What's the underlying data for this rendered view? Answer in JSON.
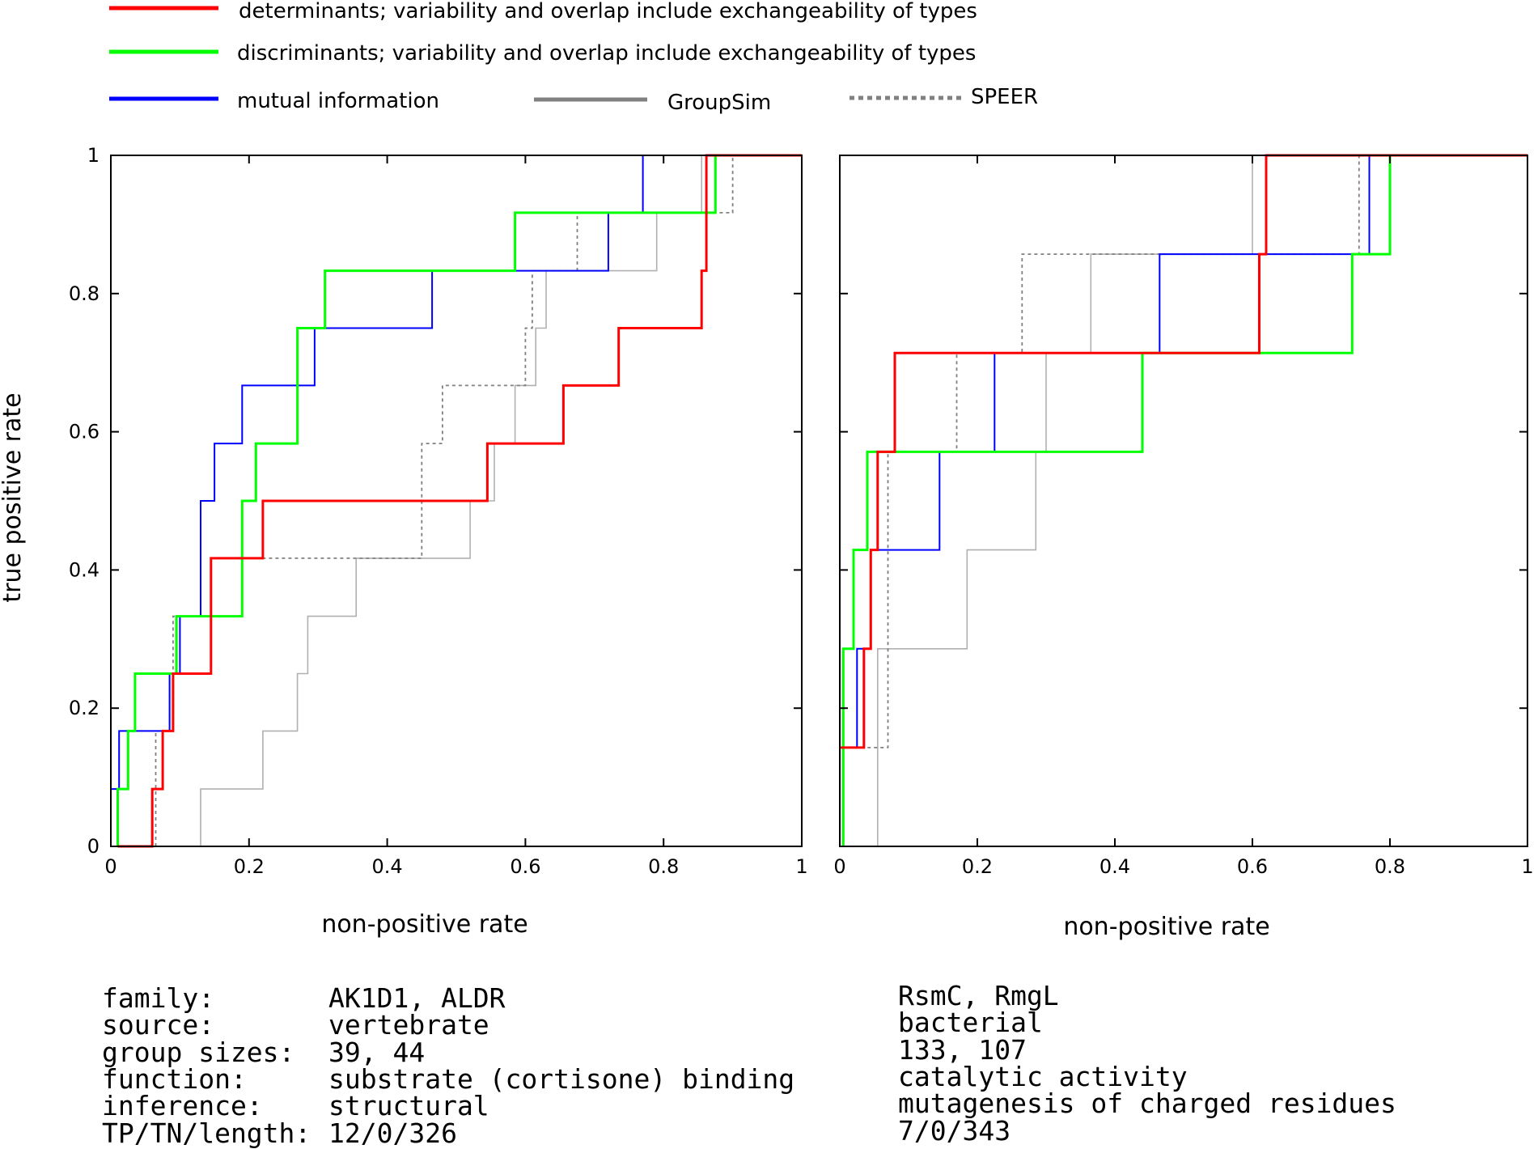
{
  "legend": [
    {
      "label": "determinants; variability and overlap include exchangeability of types",
      "color": "#ff0000",
      "dash": "solid"
    },
    {
      "label": "discriminants; variability and overlap include exchangeability of types",
      "color": "#00ff00",
      "dash": "solid"
    },
    {
      "label": "mutual information",
      "color": "#0000ff",
      "dash": "solid"
    },
    {
      "label": "GroupSim",
      "color": "#808080",
      "dash": "solid"
    },
    {
      "label": "SPEER",
      "color": "#808080",
      "dash": "dotted"
    }
  ],
  "chart_data": [
    {
      "type": "line",
      "ylabel": "true positive rate",
      "xlabel": "non-positive rate",
      "xlim": [
        0,
        1
      ],
      "ylim": [
        0,
        1
      ],
      "x_ticks": [
        "0",
        "0.2",
        "0.4",
        "0.6",
        "0.8",
        "1"
      ],
      "y_ticks": [
        "0",
        "0.2",
        "0.4",
        "0.6",
        "0.8",
        "1"
      ],
      "series": [
        {
          "name": "GroupSim",
          "color": "#b0b0b0",
          "width": 1.6,
          "dash": "",
          "points": [
            [
              0.13,
              0
            ],
            [
              0.13,
              0.083
            ],
            [
              0.22,
              0.083
            ],
            [
              0.22,
              0.167
            ],
            [
              0.27,
              0.167
            ],
            [
              0.27,
              0.25
            ],
            [
              0.285,
              0.25
            ],
            [
              0.285,
              0.333
            ],
            [
              0.355,
              0.333
            ],
            [
              0.355,
              0.417
            ],
            [
              0.52,
              0.417
            ],
            [
              0.52,
              0.5
            ],
            [
              0.555,
              0.5
            ],
            [
              0.555,
              0.583
            ],
            [
              0.585,
              0.583
            ],
            [
              0.585,
              0.667
            ],
            [
              0.615,
              0.667
            ],
            [
              0.615,
              0.75
            ],
            [
              0.63,
              0.75
            ],
            [
              0.63,
              0.833
            ],
            [
              0.79,
              0.833
            ],
            [
              0.79,
              0.917
            ],
            [
              0.855,
              0.917
            ],
            [
              0.855,
              1
            ],
            [
              1,
              1
            ]
          ]
        },
        {
          "name": "SPEER",
          "color": "#808080",
          "width": 1.8,
          "dash": "4,4",
          "points": [
            [
              0.065,
              0
            ],
            [
              0.065,
              0.167
            ],
            [
              0.085,
              0.167
            ],
            [
              0.085,
              0.25
            ],
            [
              0.09,
              0.25
            ],
            [
              0.09,
              0.333
            ],
            [
              0.19,
              0.333
            ],
            [
              0.19,
              0.417
            ],
            [
              0.45,
              0.417
            ],
            [
              0.45,
              0.583
            ],
            [
              0.48,
              0.583
            ],
            [
              0.48,
              0.667
            ],
            [
              0.6,
              0.667
            ],
            [
              0.6,
              0.75
            ],
            [
              0.61,
              0.75
            ],
            [
              0.61,
              0.833
            ],
            [
              0.675,
              0.833
            ],
            [
              0.675,
              0.917
            ],
            [
              0.9,
              0.917
            ],
            [
              0.9,
              1
            ],
            [
              1,
              1
            ]
          ]
        },
        {
          "name": "mutual information",
          "color": "#0000ff",
          "width": 2,
          "dash": "",
          "points": [
            [
              0,
              0
            ],
            [
              0,
              0.083
            ],
            [
              0.012,
              0.083
            ],
            [
              0.012,
              0.167
            ],
            [
              0.085,
              0.167
            ],
            [
              0.085,
              0.25
            ],
            [
              0.1,
              0.25
            ],
            [
              0.1,
              0.333
            ],
            [
              0.13,
              0.333
            ],
            [
              0.13,
              0.5
            ],
            [
              0.15,
              0.5
            ],
            [
              0.15,
              0.583
            ],
            [
              0.19,
              0.583
            ],
            [
              0.19,
              0.667
            ],
            [
              0.295,
              0.667
            ],
            [
              0.295,
              0.75
            ],
            [
              0.465,
              0.75
            ],
            [
              0.465,
              0.833
            ],
            [
              0.72,
              0.833
            ],
            [
              0.72,
              0.917
            ],
            [
              0.77,
              0.917
            ],
            [
              0.77,
              1
            ],
            [
              1,
              1
            ]
          ]
        },
        {
          "name": "discriminants; variability and overlap include exchangeability of types",
          "color": "#00ff00",
          "width": 3,
          "dash": "",
          "points": [
            [
              0.01,
              0
            ],
            [
              0.01,
              0.083
            ],
            [
              0.025,
              0.083
            ],
            [
              0.025,
              0.167
            ],
            [
              0.035,
              0.167
            ],
            [
              0.035,
              0.25
            ],
            [
              0.095,
              0.25
            ],
            [
              0.095,
              0.333
            ],
            [
              0.19,
              0.333
            ],
            [
              0.19,
              0.5
            ],
            [
              0.21,
              0.5
            ],
            [
              0.21,
              0.583
            ],
            [
              0.27,
              0.583
            ],
            [
              0.27,
              0.75
            ],
            [
              0.31,
              0.75
            ],
            [
              0.31,
              0.833
            ],
            [
              0.585,
              0.833
            ],
            [
              0.585,
              0.917
            ],
            [
              0.875,
              0.917
            ],
            [
              0.875,
              1
            ],
            [
              1,
              1
            ]
          ]
        },
        {
          "name": "determinants; variability and overlap include exchangeability of types",
          "color": "#ff0000",
          "width": 3,
          "dash": "",
          "points": [
            [
              0.01,
              0
            ],
            [
              0.06,
              0
            ],
            [
              0.06,
              0.083
            ],
            [
              0.075,
              0.083
            ],
            [
              0.075,
              0.167
            ],
            [
              0.09,
              0.167
            ],
            [
              0.09,
              0.25
            ],
            [
              0.145,
              0.25
            ],
            [
              0.145,
              0.417
            ],
            [
              0.22,
              0.417
            ],
            [
              0.22,
              0.5
            ],
            [
              0.545,
              0.5
            ],
            [
              0.545,
              0.583
            ],
            [
              0.655,
              0.583
            ],
            [
              0.655,
              0.667
            ],
            [
              0.735,
              0.667
            ],
            [
              0.735,
              0.75
            ],
            [
              0.855,
              0.75
            ],
            [
              0.855,
              0.833
            ],
            [
              0.862,
              0.833
            ],
            [
              0.862,
              1
            ],
            [
              1,
              1
            ]
          ]
        }
      ]
    },
    {
      "type": "line",
      "xlabel": "non-positive rate",
      "xlim": [
        0,
        1
      ],
      "ylim": [
        0,
        1
      ],
      "x_ticks": [
        "0",
        "0.2",
        "0.4",
        "0.6",
        "0.8",
        "1"
      ],
      "y_ticks": [
        "0",
        "0.2",
        "0.4",
        "0.6",
        "0.8",
        "1"
      ],
      "series": [
        {
          "name": "GroupSim",
          "color": "#b0b0b0",
          "width": 1.6,
          "dash": "",
          "points": [
            [
              0.055,
              0
            ],
            [
              0.055,
              0.286
            ],
            [
              0.185,
              0.286
            ],
            [
              0.185,
              0.429
            ],
            [
              0.285,
              0.429
            ],
            [
              0.285,
              0.571
            ],
            [
              0.3,
              0.571
            ],
            [
              0.3,
              0.714
            ],
            [
              0.365,
              0.714
            ],
            [
              0.365,
              0.857
            ],
            [
              0.6,
              0.857
            ],
            [
              0.6,
              1
            ],
            [
              1,
              1
            ]
          ]
        },
        {
          "name": "SPEER",
          "color": "#808080",
          "width": 1.8,
          "dash": "4,4",
          "points": [
            [
              0.005,
              0
            ],
            [
              0.005,
              0.143
            ],
            [
              0.07,
              0.143
            ],
            [
              0.07,
              0.571
            ],
            [
              0.17,
              0.571
            ],
            [
              0.17,
              0.714
            ],
            [
              0.265,
              0.714
            ],
            [
              0.265,
              0.857
            ],
            [
              0.755,
              0.857
            ],
            [
              0.755,
              1
            ],
            [
              1,
              1
            ]
          ]
        },
        {
          "name": "mutual information",
          "color": "#0000ff",
          "width": 2,
          "dash": "",
          "points": [
            [
              0.005,
              0
            ],
            [
              0.005,
              0.143
            ],
            [
              0.025,
              0.143
            ],
            [
              0.025,
              0.286
            ],
            [
              0.045,
              0.286
            ],
            [
              0.045,
              0.429
            ],
            [
              0.145,
              0.429
            ],
            [
              0.145,
              0.571
            ],
            [
              0.225,
              0.571
            ],
            [
              0.225,
              0.714
            ],
            [
              0.465,
              0.714
            ],
            [
              0.465,
              0.857
            ],
            [
              0.77,
              0.857
            ],
            [
              0.77,
              1
            ],
            [
              1,
              1
            ]
          ]
        },
        {
          "name": "discriminants; variability and overlap include exchangeability of types",
          "color": "#00ff00",
          "width": 3,
          "dash": "",
          "points": [
            [
              0.005,
              0
            ],
            [
              0.005,
              0.286
            ],
            [
              0.02,
              0.286
            ],
            [
              0.02,
              0.429
            ],
            [
              0.04,
              0.429
            ],
            [
              0.04,
              0.571
            ],
            [
              0.44,
              0.571
            ],
            [
              0.44,
              0.714
            ],
            [
              0.745,
              0.714
            ],
            [
              0.745,
              0.857
            ],
            [
              0.8,
              0.857
            ],
            [
              0.8,
              1
            ],
            [
              0.945,
              1
            ],
            [
              1,
              1
            ]
          ]
        },
        {
          "name": "determinants; variability and overlap include exchangeability of types",
          "color": "#ff0000",
          "width": 3,
          "dash": "",
          "points": [
            [
              0,
              0.143
            ],
            [
              0.035,
              0.143
            ],
            [
              0.035,
              0.286
            ],
            [
              0.045,
              0.286
            ],
            [
              0.045,
              0.429
            ],
            [
              0.055,
              0.429
            ],
            [
              0.055,
              0.571
            ],
            [
              0.08,
              0.571
            ],
            [
              0.08,
              0.714
            ],
            [
              0.61,
              0.714
            ],
            [
              0.61,
              0.857
            ],
            [
              0.62,
              0.857
            ],
            [
              0.62,
              1
            ],
            [
              1,
              1
            ]
          ]
        }
      ]
    }
  ],
  "info_labels": [
    "family:",
    "source:",
    "group sizes:",
    "function:",
    "inference:",
    "TP/TN/length:"
  ],
  "info_left": [
    "AK1D1, ALDR",
    "vertebrate",
    "39, 44",
    "substrate (cortisone) binding",
    "structural",
    "12/0/326"
  ],
  "info_right": [
    "RsmC, RmgL",
    "bacterial",
    "133, 107",
    "catalytic activity",
    "mutagenesis of charged residues",
    "7/0/343"
  ]
}
